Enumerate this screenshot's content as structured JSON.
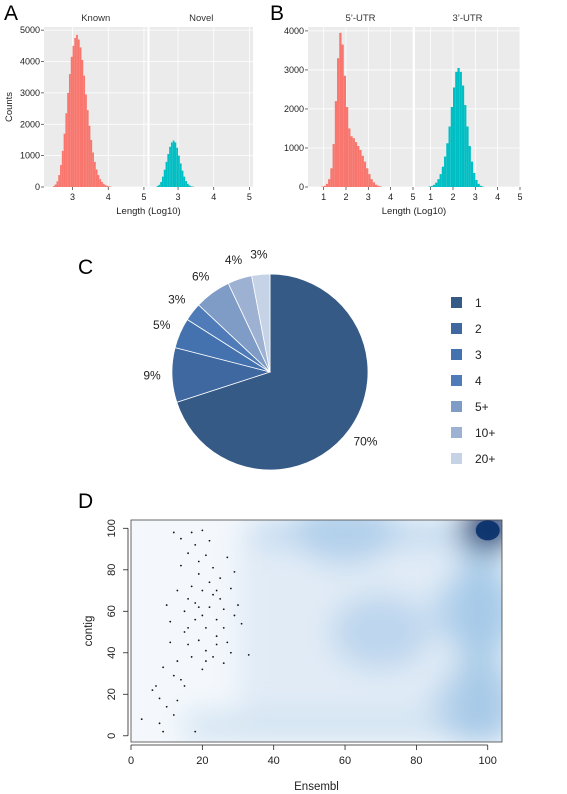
{
  "panels": {
    "A": {
      "letter": "A"
    },
    "B": {
      "letter": "B"
    },
    "C": {
      "letter": "C"
    },
    "D": {
      "letter": "D"
    }
  },
  "chart_data": [
    {
      "panel": "A",
      "type": "bar",
      "facets": [
        "Known",
        "Novel"
      ],
      "xlabel": "Length (Log10)",
      "ylabel": "Counts",
      "xlim": [
        2.2,
        5.1
      ],
      "ylim": [
        0,
        5100
      ],
      "x_ticks": [
        "3",
        "4",
        "5"
      ],
      "y_ticks": [
        "0",
        "1000",
        "2000",
        "3000",
        "4000",
        "5000"
      ],
      "bin_width": 0.05,
      "colors": {
        "Known": "#F8766D",
        "Novel": "#00BFC4",
        "panel_bg": "#EBEBEB",
        "grid": "#FFFFFF"
      },
      "series": [
        {
          "facet": "Known",
          "x_start": 2.45,
          "values": [
            30,
            80,
            180,
            380,
            700,
            1150,
            1700,
            2350,
            3000,
            3600,
            4150,
            4500,
            4750,
            4850,
            4700,
            4450,
            4050,
            3550,
            2950,
            2450,
            1950,
            1500,
            1100,
            800,
            560,
            380,
            250,
            160,
            100,
            60,
            35,
            20,
            10
          ]
        },
        {
          "facet": "Novel",
          "x_start": 2.4,
          "values": [
            30,
            70,
            160,
            330,
            550,
            800,
            1050,
            1280,
            1420,
            1480,
            1420,
            1250,
            1000,
            750,
            520,
            330,
            190,
            100,
            50,
            20,
            10
          ]
        }
      ]
    },
    {
      "panel": "B",
      "type": "bar",
      "facets": [
        "5’-UTR",
        "3’-UTR"
      ],
      "xlabel": "Length (Log10)",
      "ylabel": "",
      "xlim": [
        0.3,
        5.0
      ],
      "ylim": [
        0,
        4100
      ],
      "x_ticks": [
        "1",
        "2",
        "3",
        "4",
        "5"
      ],
      "y_ticks": [
        "0",
        "1000",
        "2000",
        "3000",
        "4000"
      ],
      "bin_width": 0.1,
      "colors": {
        "5’-UTR": "#F8766D",
        "3’-UTR": "#00BFC4",
        "panel_bg": "#EBEBEB",
        "grid": "#FFFFFF"
      },
      "series": [
        {
          "facet": "5’-UTR",
          "x_start": 0.9,
          "values": [
            10,
            30,
            80,
            200,
            480,
            1100,
            2200,
            3300,
            3950,
            3650,
            2850,
            2050,
            1500,
            1300,
            1250,
            1150,
            1050,
            950,
            800,
            650,
            480,
            330,
            200,
            120,
            60,
            30,
            15
          ]
        },
        {
          "facet": "3’-UTR",
          "x_start": 0.9,
          "values": [
            10,
            25,
            55,
            110,
            200,
            330,
            520,
            780,
            1120,
            1550,
            2050,
            2550,
            2950,
            3050,
            2950,
            2600,
            2100,
            1550,
            1050,
            650,
            360,
            180,
            80,
            30,
            10
          ]
        }
      ]
    },
    {
      "panel": "C",
      "type": "pie",
      "categories": [
        "1",
        "2",
        "3",
        "4",
        "5+",
        "10+",
        "20+"
      ],
      "values": [
        70,
        9,
        5,
        3,
        6,
        4,
        3
      ],
      "labels": [
        "70%",
        "9%",
        "5%",
        "3%",
        "6%",
        "4%",
        "3%"
      ],
      "start_angle_deg": 0,
      "direction": "clockwise",
      "colors": [
        "#355A86",
        "#3F67A0",
        "#4472AE",
        "#4F7CB8",
        "#7F9CC6",
        "#9DB1D2",
        "#C6D2E5"
      ],
      "legend": {
        "position": "right",
        "entries": [
          "1",
          "2",
          "3",
          "4",
          "5+",
          "10+",
          "20+"
        ]
      }
    },
    {
      "panel": "D",
      "type": "heatmap",
      "subtype": "smoothScatter",
      "xlabel": "Ensembl",
      "ylabel": "contig",
      "xlim": [
        0,
        104
      ],
      "ylim": [
        -3,
        104
      ],
      "x_ticks": [
        "0",
        "20",
        "40",
        "60",
        "80",
        "100"
      ],
      "y_ticks": [
        "0",
        "20",
        "40",
        "60",
        "80",
        "100"
      ],
      "colors": {
        "low": "#FFFFFF",
        "mid": "#9EC5E6",
        "high": "#08306B",
        "points": "#111111"
      },
      "density_peaks": [
        {
          "x": 100,
          "y": 100,
          "weight": 1.0
        },
        {
          "x": 98,
          "y": 60,
          "weight": 0.45
        },
        {
          "x": 98,
          "y": 15,
          "weight": 0.35
        },
        {
          "x": 60,
          "y": 100,
          "weight": 0.35
        },
        {
          "x": 70,
          "y": 50,
          "weight": 0.3
        }
      ],
      "outlier_points": [
        [
          3,
          8
        ],
        [
          6,
          22
        ],
        [
          7,
          24
        ],
        [
          8,
          18
        ],
        [
          8,
          6
        ],
        [
          9,
          2
        ],
        [
          10,
          63
        ],
        [
          11,
          55
        ],
        [
          11,
          45
        ],
        [
          12,
          10
        ],
        [
          12,
          29
        ],
        [
          12,
          98
        ],
        [
          13,
          36
        ],
        [
          13,
          70
        ],
        [
          14,
          82
        ],
        [
          14,
          95
        ],
        [
          15,
          60
        ],
        [
          15,
          50
        ],
        [
          15,
          24
        ],
        [
          16,
          66
        ],
        [
          16,
          44
        ],
        [
          16,
          88
        ],
        [
          17,
          98
        ],
        [
          17,
          72
        ],
        [
          17,
          38
        ],
        [
          18,
          56
        ],
        [
          18,
          92
        ],
        [
          18,
          64
        ],
        [
          19,
          46
        ],
        [
          19,
          78
        ],
        [
          19,
          84
        ],
        [
          20,
          32
        ],
        [
          20,
          99
        ],
        [
          20,
          58
        ],
        [
          20,
          70
        ],
        [
          21,
          41
        ],
        [
          21,
          52
        ],
        [
          21,
          87
        ],
        [
          22,
          62
        ],
        [
          22,
          94
        ],
        [
          22,
          74
        ],
        [
          23,
          38
        ],
        [
          23,
          68
        ],
        [
          23,
          81
        ],
        [
          24,
          48
        ],
        [
          24,
          56
        ],
        [
          24,
          44
        ],
        [
          25,
          66
        ],
        [
          25,
          76
        ],
        [
          26,
          52
        ],
        [
          26,
          61
        ],
        [
          27,
          86
        ],
        [
          27,
          45
        ],
        [
          28,
          71
        ],
        [
          28,
          40
        ],
        [
          29,
          79
        ],
        [
          29,
          58
        ],
        [
          30,
          63
        ],
        [
          31,
          54
        ],
        [
          33,
          39
        ],
        [
          9,
          33
        ],
        [
          10,
          14
        ],
        [
          14,
          27
        ],
        [
          18,
          2
        ],
        [
          21,
          36
        ],
        [
          13,
          17
        ],
        [
          16,
          52
        ],
        [
          19,
          62
        ],
        [
          24,
          70
        ],
        [
          26,
          35
        ]
      ]
    }
  ]
}
